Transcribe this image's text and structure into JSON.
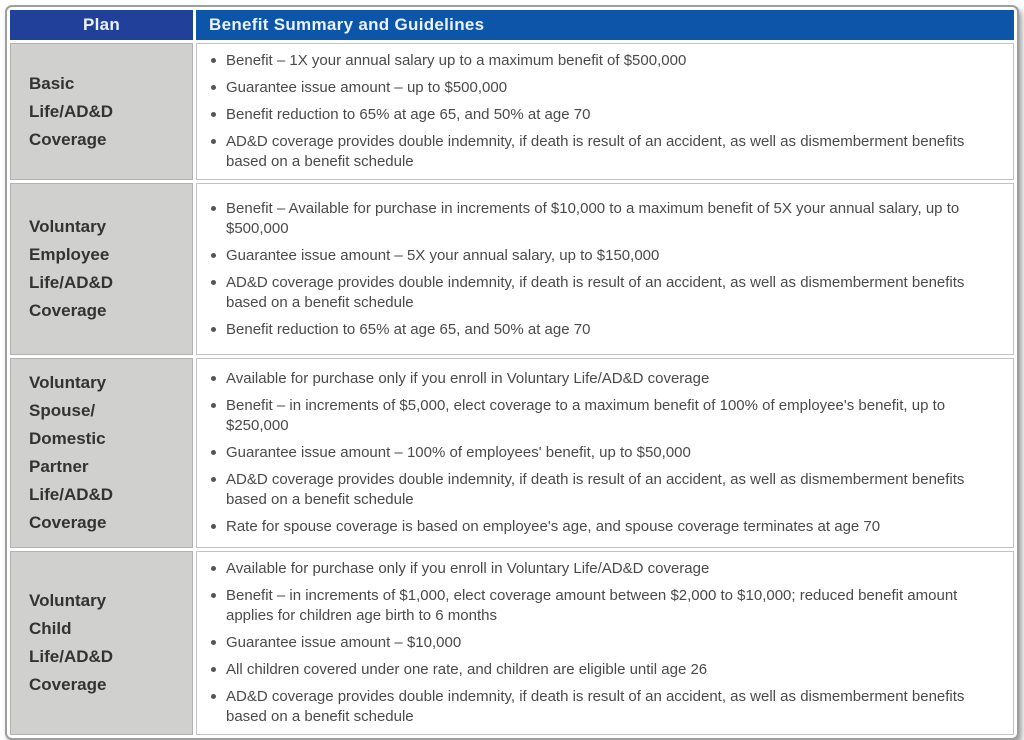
{
  "colors": {
    "plan_header_bg": "#21409a",
    "benefit_header_bg": "#0d55a8",
    "header_text": "#eaf2fc",
    "plan_cell_bg": "#d0d0ce",
    "plan_text": "#333333",
    "bullet_text": "#4a4a4a",
    "table_border": "#9e9e9e"
  },
  "table": {
    "header": {
      "plan": "Plan",
      "benefits": "Benefit Summary and Guidelines"
    },
    "rows": [
      {
        "plan_lines": [
          "Basic",
          "Life/AD&D",
          "Coverage"
        ],
        "bullets": [
          "Benefit – 1X your annual salary up to a maximum benefit of $500,000",
          "Guarantee issue amount – up to $500,000",
          "Benefit reduction to 65% at age 65, and 50% at age 70",
          "AD&D coverage provides double indemnity, if death is result of an accident, as well as dismemberment benefits based on a benefit schedule"
        ]
      },
      {
        "plan_lines": [
          "Voluntary",
          "Employee",
          "Life/AD&D",
          "Coverage"
        ],
        "bullets": [
          "Benefit – Available for purchase in increments of $10,000 to a maximum benefit of 5X your annual salary, up to $500,000",
          "Guarantee issue amount – 5X your annual salary, up to $150,000",
          "AD&D coverage provides double indemnity, if death is result of an accident, as well as dismemberment benefits based on a benefit schedule",
          "Benefit reduction to 65% at age 65, and 50% at age 70"
        ]
      },
      {
        "plan_lines": [
          "Voluntary",
          "Spouse/",
          "Domestic",
          "Partner",
          "Life/AD&D",
          "Coverage"
        ],
        "bullets": [
          "Available for purchase only if you enroll in Voluntary Life/AD&D coverage",
          "Benefit – in increments of $5,000, elect coverage to a maximum benefit of 100% of employee's benefit, up to $250,000",
          "Guarantee issue amount –  100% of employees' benefit, up to $50,000",
          "AD&D coverage provides double indemnity, if death is result of an accident, as well as dismemberment benefits based on a benefit schedule",
          "Rate for spouse coverage is based on employee's age, and spouse coverage terminates at age 70"
        ]
      },
      {
        "plan_lines": [
          "Voluntary",
          "Child",
          "Life/AD&D",
          "Coverage"
        ],
        "bullets": [
          "Available for purchase only if you enroll in Voluntary Life/AD&D coverage",
          "Benefit  – in increments of $1,000, elect coverage amount between $2,000 to $10,000; reduced benefit amount applies for children age birth to 6 months",
          "Guarantee issue amount – $10,000",
          "All children covered under one rate, and children are eligible until age 26",
          "AD&D coverage provides double indemnity, if death is result of an accident, as well as dismemberment benefits based on a benefit schedule"
        ]
      }
    ]
  }
}
